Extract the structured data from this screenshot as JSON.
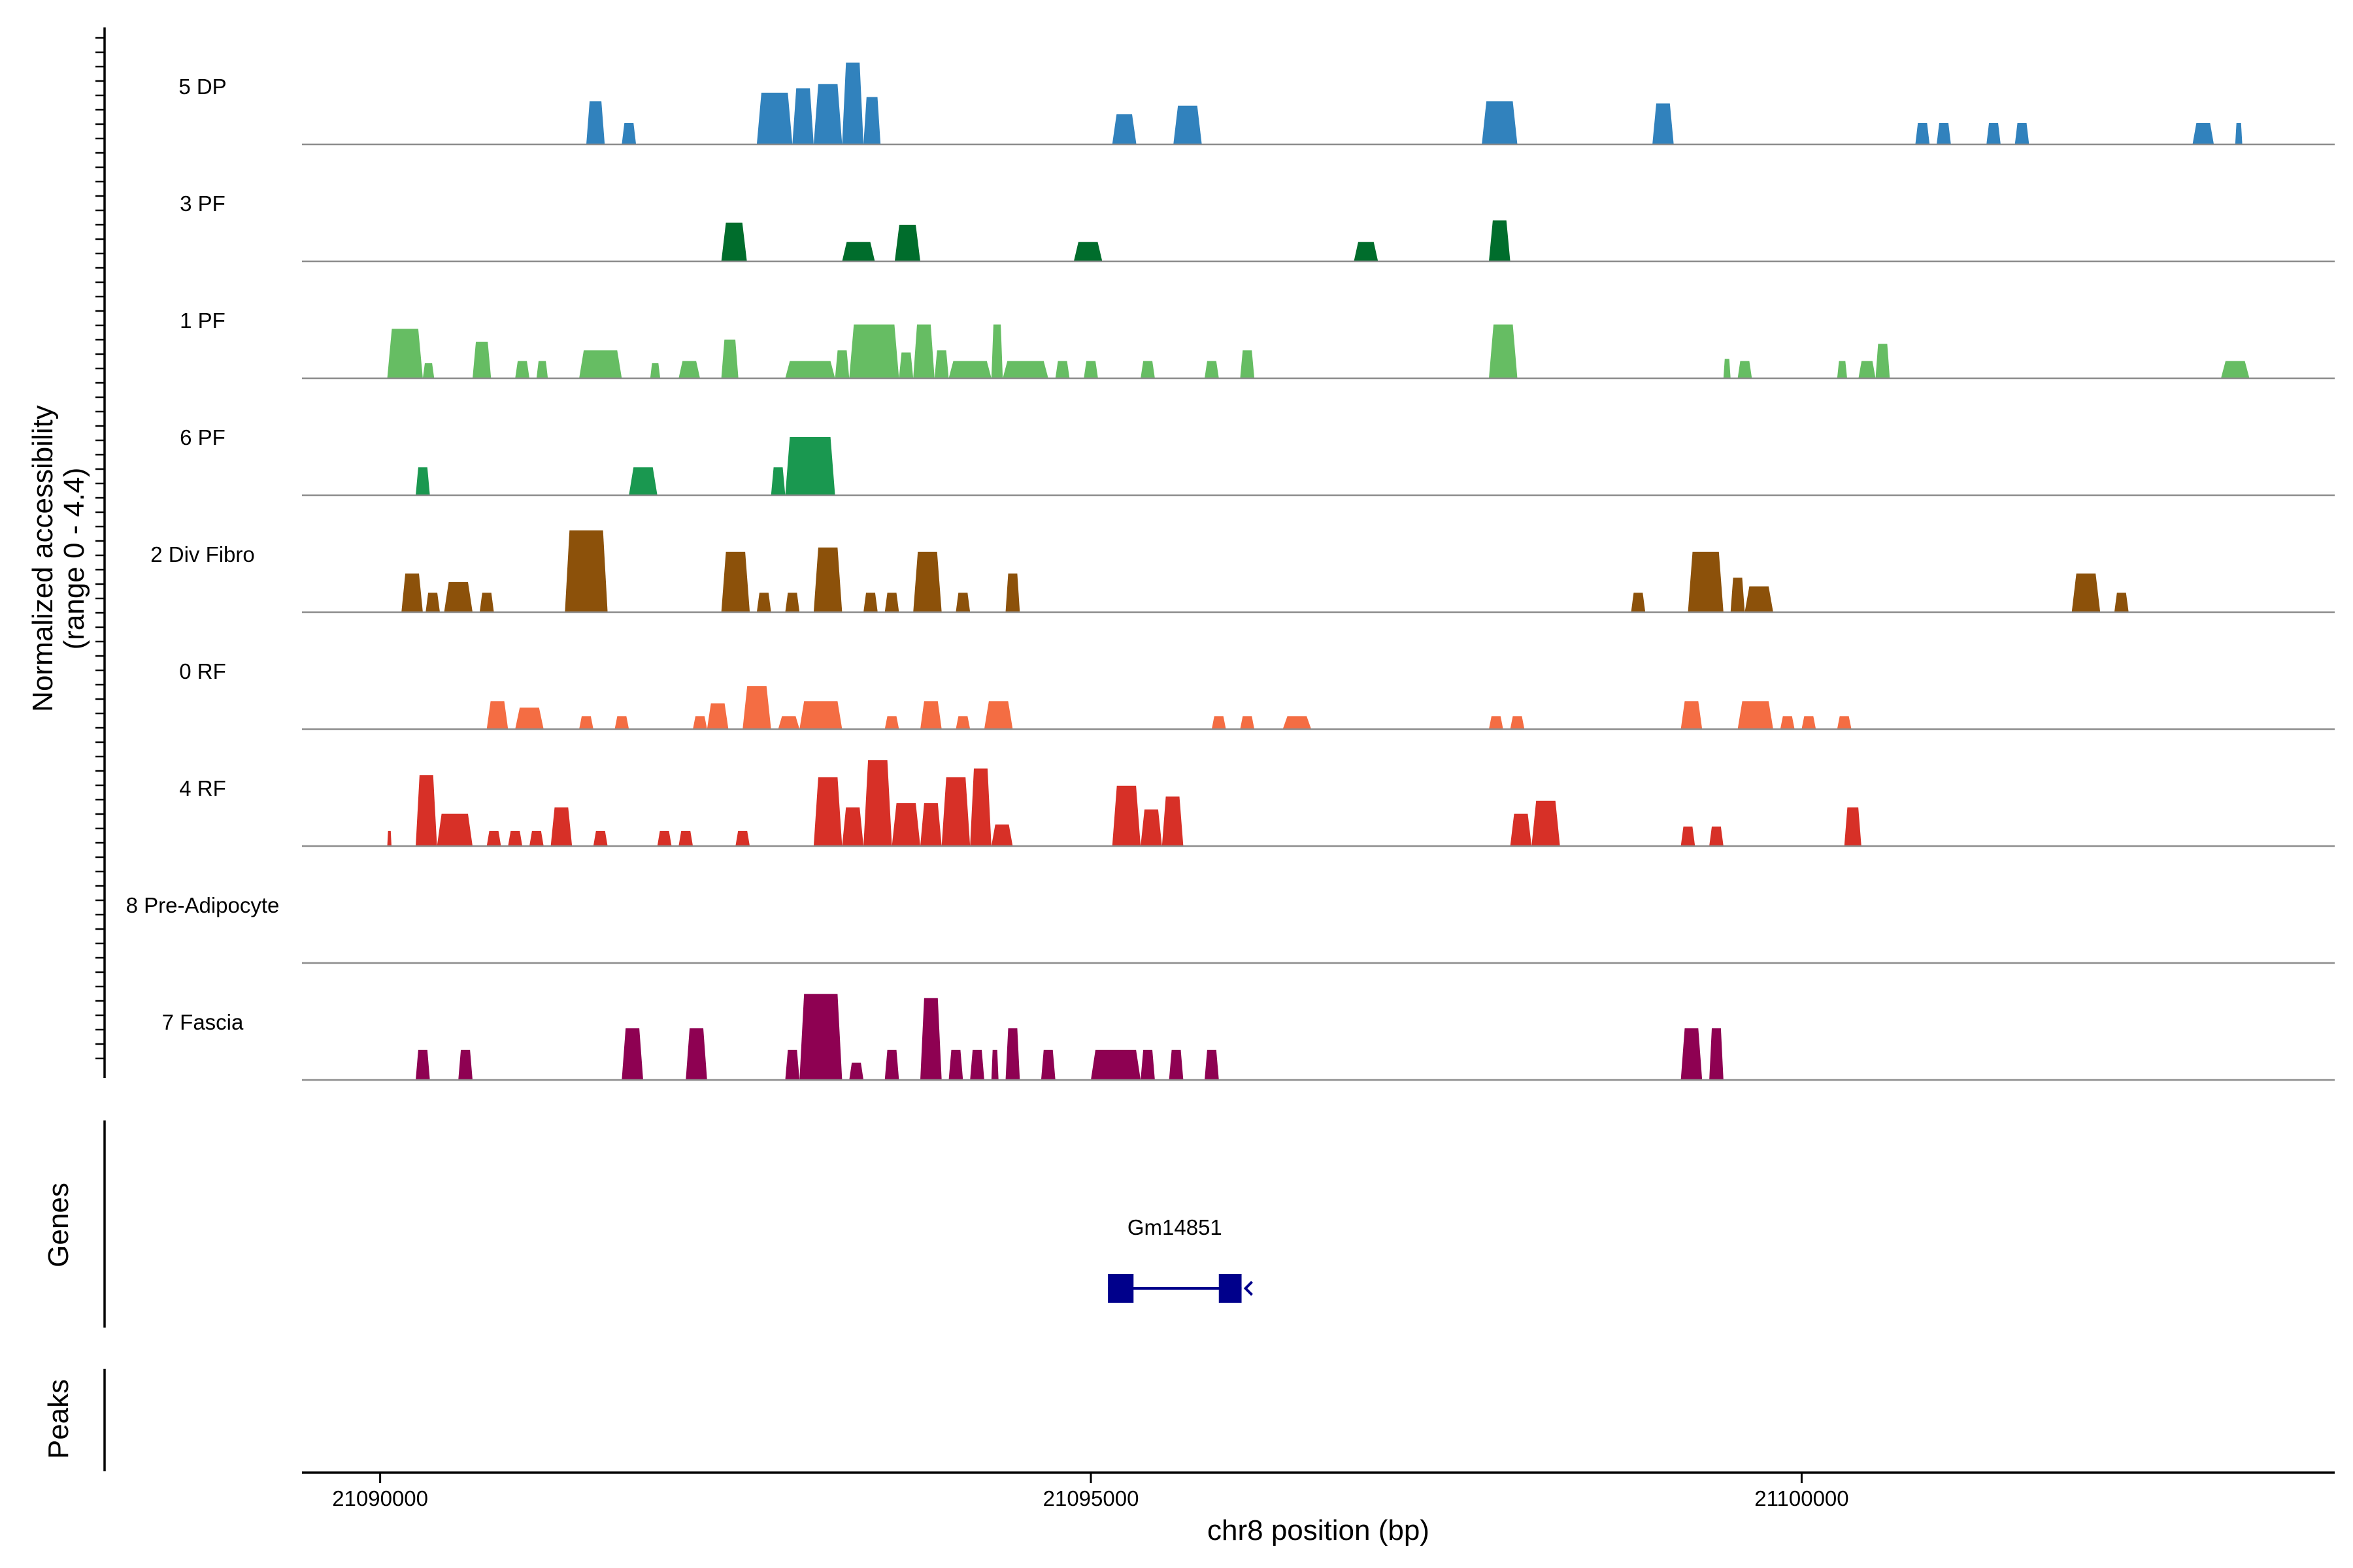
{
  "chart_data": {
    "type": "area",
    "title": "",
    "xlabel": "chr8 position (bp)",
    "ylabel_line1": "Normalized accessibility",
    "ylabel_line2": "(range 0 - 4.4)",
    "genes_label": "Genes",
    "peaks_label": "Peaks",
    "xlim": [
      21089450,
      21103750
    ],
    "ylim": [
      0,
      4.4
    ],
    "x_ticks": [
      21090000,
      21095000,
      21100000
    ],
    "x_tick_labels": [
      "21090000",
      "21095000",
      "21100000"
    ],
    "tracks": [
      {
        "name": "5 DP",
        "color": "#3182bd",
        "peaks": [
          [
            21091450,
            21091580,
            2.0
          ],
          [
            21091700,
            21091800,
            1.0
          ],
          [
            21092650,
            21092900,
            2.4
          ],
          [
            21092900,
            21093050,
            2.6
          ],
          [
            21093050,
            21093250,
            2.8
          ],
          [
            21093250,
            21093400,
            3.8
          ],
          [
            21093400,
            21093520,
            2.2
          ],
          [
            21095150,
            21095320,
            1.4
          ],
          [
            21095580,
            21095780,
            1.8
          ],
          [
            21097750,
            21098000,
            2.0
          ],
          [
            21098950,
            21099100,
            1.9
          ],
          [
            21100800,
            21100900,
            1.0
          ],
          [
            21100950,
            21101050,
            1.0
          ],
          [
            21101300,
            21101400,
            1.0
          ],
          [
            21101500,
            21101600,
            1.0
          ],
          [
            21102750,
            21102900,
            1.0
          ],
          [
            21103050,
            21103100,
            1.0
          ]
        ]
      },
      {
        "name": "3 PF",
        "color": "#006d2c",
        "peaks": [
          [
            21092400,
            21092580,
            1.8
          ],
          [
            21093250,
            21093480,
            0.9
          ],
          [
            21093620,
            21093800,
            1.7
          ],
          [
            21094880,
            21095080,
            0.9
          ],
          [
            21096850,
            21097020,
            0.9
          ],
          [
            21097800,
            21097950,
            1.9
          ]
        ]
      },
      {
        "name": "1 PF",
        "color": "#66bd63",
        "peaks": [
          [
            21090050,
            21090300,
            2.3
          ],
          [
            21090300,
            21090380,
            0.7
          ],
          [
            21090650,
            21090780,
            1.7
          ],
          [
            21090950,
            21091050,
            0.8
          ],
          [
            21091100,
            21091180,
            0.8
          ],
          [
            21091400,
            21091700,
            1.3
          ],
          [
            21091900,
            21091970,
            0.7
          ],
          [
            21092100,
            21092250,
            0.8
          ],
          [
            21092400,
            21092520,
            1.8
          ],
          [
            21092850,
            21093200,
            0.8
          ],
          [
            21093200,
            21093300,
            1.3
          ],
          [
            21093300,
            21093650,
            2.5
          ],
          [
            21093650,
            21093750,
            1.2
          ],
          [
            21093750,
            21093900,
            2.5
          ],
          [
            21093900,
            21094000,
            1.3
          ],
          [
            21094000,
            21094300,
            0.8
          ],
          [
            21094300,
            21094380,
            2.5
          ],
          [
            21094380,
            21094700,
            0.8
          ],
          [
            21094750,
            21094850,
            0.8
          ],
          [
            21094950,
            21095050,
            0.8
          ],
          [
            21095350,
            21095450,
            0.8
          ],
          [
            21095800,
            21095900,
            0.8
          ],
          [
            21096050,
            21096150,
            1.3
          ],
          [
            21097800,
            21098000,
            2.5
          ],
          [
            21099450,
            21099500,
            0.9
          ],
          [
            21099550,
            21099650,
            0.8
          ],
          [
            21100250,
            21100320,
            0.8
          ],
          [
            21100400,
            21100520,
            0.8
          ],
          [
            21100520,
            21100620,
            1.6
          ],
          [
            21102950,
            21103150,
            0.8
          ]
        ]
      },
      {
        "name": "6 PF",
        "color": "#1a9850",
        "peaks": [
          [
            21090250,
            21090350,
            1.3
          ],
          [
            21091750,
            21091950,
            1.3
          ],
          [
            21092750,
            21092850,
            1.3
          ],
          [
            21092850,
            21093200,
            2.7
          ]
        ]
      },
      {
        "name": "2 Div Fibro",
        "color": "#8c510a",
        "peaks": [
          [
            21090150,
            21090300,
            1.8
          ],
          [
            21090320,
            21090420,
            0.9
          ],
          [
            21090450,
            21090650,
            1.4
          ],
          [
            21090700,
            21090800,
            0.9
          ],
          [
            21091300,
            21091600,
            3.8
          ],
          [
            21092400,
            21092600,
            2.8
          ],
          [
            21092650,
            21092750,
            0.9
          ],
          [
            21092850,
            21092950,
            0.9
          ],
          [
            21093050,
            21093250,
            3.0
          ],
          [
            21093400,
            21093500,
            0.9
          ],
          [
            21093550,
            21093650,
            0.9
          ],
          [
            21093750,
            21093950,
            2.8
          ],
          [
            21094050,
            21094150,
            0.9
          ],
          [
            21094400,
            21094500,
            1.8
          ],
          [
            21098800,
            21098900,
            0.9
          ],
          [
            21099200,
            21099450,
            2.8
          ],
          [
            21099500,
            21099600,
            1.6
          ],
          [
            21099600,
            21099800,
            1.2
          ],
          [
            21101900,
            21102100,
            1.8
          ],
          [
            21102200,
            21102300,
            0.9
          ]
        ]
      },
      {
        "name": "0 RF",
        "color": "#f46d43",
        "peaks": [
          [
            21090750,
            21090900,
            1.3
          ],
          [
            21090950,
            21091150,
            1.0
          ],
          [
            21091400,
            21091500,
            0.6
          ],
          [
            21091650,
            21091750,
            0.6
          ],
          [
            21092200,
            21092300,
            0.6
          ],
          [
            21092300,
            21092450,
            1.2
          ],
          [
            21092550,
            21092750,
            2.0
          ],
          [
            21092800,
            21092950,
            0.6
          ],
          [
            21092950,
            21093250,
            1.3
          ],
          [
            21093550,
            21093650,
            0.6
          ],
          [
            21093800,
            21093950,
            1.3
          ],
          [
            21094050,
            21094150,
            0.6
          ],
          [
            21094250,
            21094450,
            1.3
          ],
          [
            21095850,
            21095950,
            0.6
          ],
          [
            21096050,
            21096150,
            0.6
          ],
          [
            21096350,
            21096550,
            0.6
          ],
          [
            21097800,
            21097900,
            0.6
          ],
          [
            21097950,
            21098050,
            0.6
          ],
          [
            21099150,
            21099300,
            1.3
          ],
          [
            21099550,
            21099800,
            1.3
          ],
          [
            21099850,
            21099950,
            0.6
          ],
          [
            21100000,
            21100100,
            0.6
          ],
          [
            21100250,
            21100350,
            0.6
          ]
        ]
      },
      {
        "name": "4 RF",
        "color": "#d73027",
        "peaks": [
          [
            21090050,
            21090080,
            0.7
          ],
          [
            21090250,
            21090400,
            3.3
          ],
          [
            21090400,
            21090650,
            1.5
          ],
          [
            21090750,
            21090850,
            0.7
          ],
          [
            21090900,
            21091000,
            0.7
          ],
          [
            21091050,
            21091150,
            0.7
          ],
          [
            21091200,
            21091350,
            1.8
          ],
          [
            21091500,
            21091600,
            0.7
          ],
          [
            21091950,
            21092050,
            0.7
          ],
          [
            21092100,
            21092200,
            0.7
          ],
          [
            21092500,
            21092600,
            0.7
          ],
          [
            21093050,
            21093250,
            3.2
          ],
          [
            21093250,
            21093400,
            1.8
          ],
          [
            21093400,
            21093600,
            4.0
          ],
          [
            21093600,
            21093800,
            2.0
          ],
          [
            21093800,
            21093950,
            2.0
          ],
          [
            21093950,
            21094150,
            3.2
          ],
          [
            21094150,
            21094300,
            3.6
          ],
          [
            21094300,
            21094450,
            1.0
          ],
          [
            21095150,
            21095350,
            2.8
          ],
          [
            21095350,
            21095500,
            1.7
          ],
          [
            21095500,
            21095650,
            2.3
          ],
          [
            21097950,
            21098100,
            1.5
          ],
          [
            21098100,
            21098300,
            2.1
          ],
          [
            21099150,
            21099250,
            0.9
          ],
          [
            21099350,
            21099450,
            0.9
          ],
          [
            21100300,
            21100420,
            1.8
          ]
        ]
      },
      {
        "name": "8 Pre-Adipocyte",
        "color": "#fdae61",
        "peaks": []
      },
      {
        "name": "7 Fascia",
        "color": "#8e0152",
        "peaks": [
          [
            21090250,
            21090350,
            1.4
          ],
          [
            21090550,
            21090650,
            1.4
          ],
          [
            21091700,
            21091850,
            2.4
          ],
          [
            21092150,
            21092300,
            2.4
          ],
          [
            21092850,
            21092950,
            1.4
          ],
          [
            21092950,
            21093250,
            4.0
          ],
          [
            21093300,
            21093400,
            0.8
          ],
          [
            21093550,
            21093650,
            1.4
          ],
          [
            21093800,
            21093950,
            3.8
          ],
          [
            21094000,
            21094100,
            1.4
          ],
          [
            21094150,
            21094250,
            1.4
          ],
          [
            21094300,
            21094350,
            1.4
          ],
          [
            21094400,
            21094500,
            2.4
          ],
          [
            21094650,
            21094750,
            1.4
          ],
          [
            21095000,
            21095350,
            1.4
          ],
          [
            21095350,
            21095450,
            1.4
          ],
          [
            21095550,
            21095650,
            1.4
          ],
          [
            21095800,
            21095900,
            1.4
          ],
          [
            21099150,
            21099300,
            2.4
          ],
          [
            21099350,
            21099450,
            2.4
          ]
        ]
      }
    ],
    "genes": [
      {
        "name": "Gm14851",
        "start": 21095120,
        "end": 21096060,
        "strand": "-",
        "exons": [
          [
            21095120,
            21095300
          ],
          [
            21095900,
            21096060
          ]
        ],
        "color": "#00008b"
      }
    ]
  }
}
